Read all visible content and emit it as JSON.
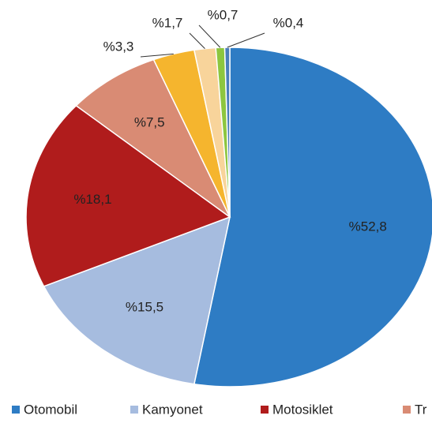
{
  "chart_data": {
    "type": "pie",
    "categories": [
      "Otomobil",
      "Kamyonet",
      "Motosiklet",
      "Tr",
      null,
      null,
      null,
      null
    ],
    "values": [
      52.8,
      15.5,
      18.1,
      7.5,
      3.3,
      1.7,
      0.7,
      0.4
    ],
    "value_labels": [
      "%52,8",
      "%15,5",
      "%18,1",
      "%7,5",
      "%3,3",
      "%1,7",
      "%0,7",
      "%0,4"
    ],
    "colors": [
      "#2e7cc4",
      "#a6bcdf",
      "#b01c1c",
      "#d98b74",
      "#f5b52e",
      "#f8d49b",
      "#8dc63f",
      "#4a7ebb"
    ],
    "legend": "bottom"
  }
}
